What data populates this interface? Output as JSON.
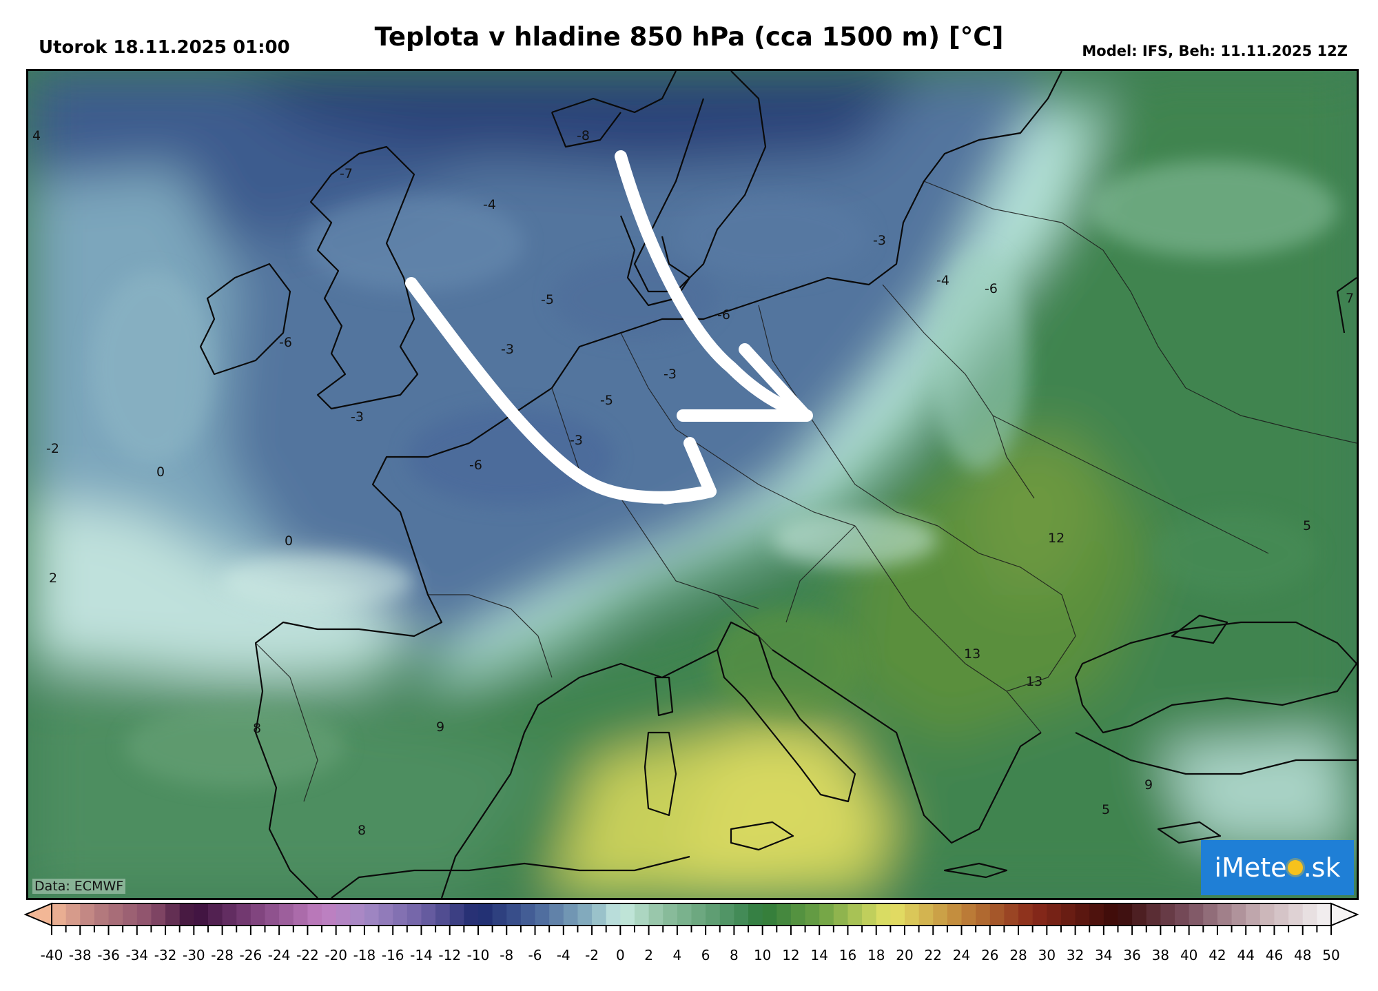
{
  "header": {
    "valid_time": "Utorok 18.11.2025 01:00",
    "title": "Teplota v hladine 850 hPa (cca 1500 m) [°C]",
    "model_run": "Model: IFS, Beh: 11.11.2025 12Z"
  },
  "map": {
    "data_source": "Data: ECMWF",
    "logo_text_left": "iMete",
    "logo_text_right": ".sk",
    "contour_labels": [
      {
        "text": "4"
      },
      {
        "text": "-7"
      },
      {
        "text": "-8"
      },
      {
        "text": "-4"
      },
      {
        "text": "-3"
      },
      {
        "text": "-4"
      },
      {
        "text": "-6"
      },
      {
        "text": "-5"
      },
      {
        "text": "-6"
      },
      {
        "text": "-6"
      },
      {
        "text": "-3"
      },
      {
        "text": "-3"
      },
      {
        "text": "-5"
      },
      {
        "text": "-3"
      },
      {
        "text": "-3"
      },
      {
        "text": "-2"
      },
      {
        "text": "0"
      },
      {
        "text": "-6"
      },
      {
        "text": "0"
      },
      {
        "text": "2"
      },
      {
        "text": "7"
      },
      {
        "text": "5"
      },
      {
        "text": "12"
      },
      {
        "text": "13"
      },
      {
        "text": "13"
      },
      {
        "text": "8"
      },
      {
        "text": "9"
      },
      {
        "text": "8"
      },
      {
        "text": "9"
      },
      {
        "text": "5"
      }
    ]
  },
  "colorbar": {
    "unit": "°C",
    "min": -40,
    "max": 50,
    "step": 1,
    "tick_labels": [
      "-40",
      "-38",
      "-36",
      "-34",
      "-32",
      "-30",
      "-28",
      "-26",
      "-24",
      "-22",
      "-20",
      "-18",
      "-16",
      "-14",
      "-12",
      "-10",
      "-8",
      "-6",
      "-4",
      "-2",
      "0",
      "2",
      "4",
      "6",
      "8",
      "10",
      "12",
      "14",
      "16",
      "18",
      "20",
      "22",
      "24",
      "26",
      "28",
      "30",
      "32",
      "34",
      "36",
      "38",
      "40",
      "42",
      "44",
      "46",
      "48",
      "50"
    ],
    "color_stops": [
      {
        "value": -40,
        "color": "#f2b796"
      },
      {
        "value": -37,
        "color": "#b97f80"
      },
      {
        "value": -33,
        "color": "#8b4f6b"
      },
      {
        "value": -30,
        "color": "#3a0f3a"
      },
      {
        "value": -26,
        "color": "#7a3f78"
      },
      {
        "value": -21,
        "color": "#c07ec0"
      },
      {
        "value": -18,
        "color": "#a58ac6"
      },
      {
        "value": -14,
        "color": "#6f62a6"
      },
      {
        "value": -10,
        "color": "#1e2a6e"
      },
      {
        "value": -6,
        "color": "#48649a"
      },
      {
        "value": -2,
        "color": "#8ab4c2"
      },
      {
        "value": 0,
        "color": "#c9ebe2"
      },
      {
        "value": 3,
        "color": "#8fc0a0"
      },
      {
        "value": 8,
        "color": "#4a9060"
      },
      {
        "value": 10,
        "color": "#2f7a3a"
      },
      {
        "value": 14,
        "color": "#6aa044"
      },
      {
        "value": 19,
        "color": "#e5e366"
      },
      {
        "value": 24,
        "color": "#c0843a"
      },
      {
        "value": 29,
        "color": "#8a2a1a"
      },
      {
        "value": 35,
        "color": "#3a0a08"
      },
      {
        "value": 40,
        "color": "#7a5060"
      },
      {
        "value": 45,
        "color": "#c7b0b4"
      },
      {
        "value": 50,
        "color": "#f6f4f4"
      }
    ]
  }
}
